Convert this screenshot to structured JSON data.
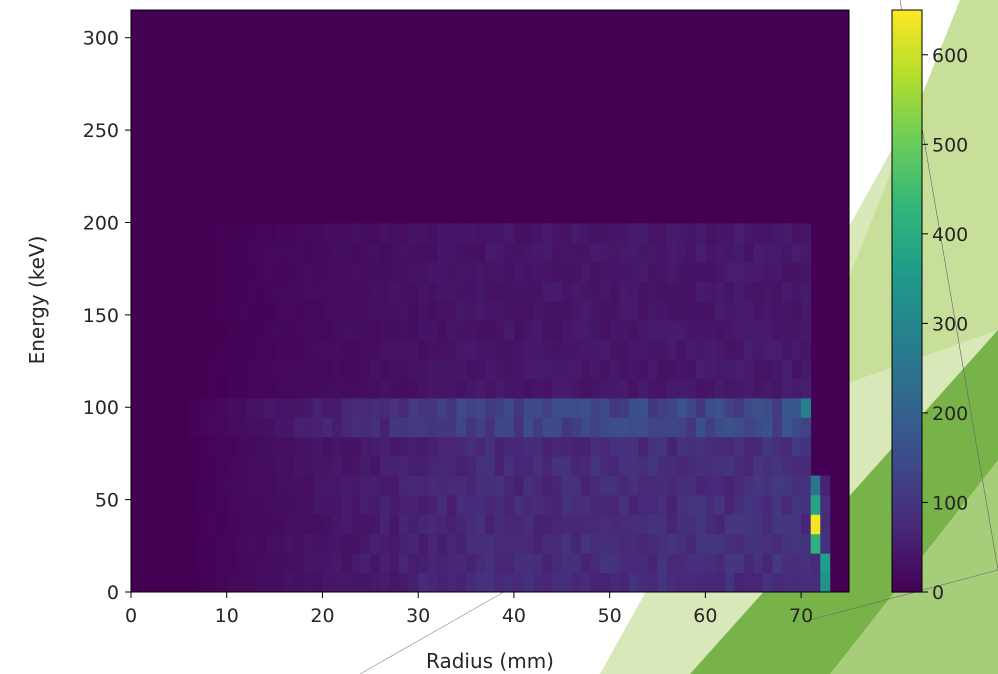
{
  "chart_data": {
    "type": "heatmap",
    "title": "",
    "xlabel": "Radius (mm)",
    "ylabel": "Energy (keV)",
    "xlim": [
      0,
      75
    ],
    "ylim": [
      0,
      315
    ],
    "x_ticks": [
      "0",
      "10",
      "20",
      "30",
      "40",
      "50",
      "60",
      "70"
    ],
    "y_ticks": [
      "0",
      "50",
      "100",
      "150",
      "200",
      "250",
      "300"
    ],
    "colorbar": {
      "colormap": "viridis",
      "range": [
        0,
        650
      ],
      "ticks": [
        "0",
        "100",
        "200",
        "300",
        "400",
        "500",
        "600"
      ]
    },
    "bins": {
      "x_edges": [
        0,
        75
      ],
      "x_count": 75,
      "y_edges": [
        0,
        315
      ],
      "y_count": 30
    },
    "energy_bands": [
      {
        "e_from": 0,
        "e_to": 80,
        "level": 80
      },
      {
        "e_from": 80,
        "e_to": 110,
        "level": 130
      },
      {
        "e_from": 110,
        "e_to": 200,
        "level": 40
      }
    ],
    "hotspots": [
      {
        "r": 71.5,
        "e": 36,
        "value": 640
      },
      {
        "r": 71.5,
        "e": 26,
        "value": 420
      },
      {
        "r": 71.5,
        "e": 46,
        "value": 380
      },
      {
        "r": 72.5,
        "e": 16,
        "value": 360
      },
      {
        "r": 72.5,
        "e": 5,
        "value": 330
      },
      {
        "r": 71.5,
        "e": 57,
        "value": 250
      },
      {
        "r": 70.5,
        "e": 100,
        "value": 280
      }
    ],
    "colors": {
      "background": "#440154",
      "frame": "#000000",
      "text": "#262626"
    }
  },
  "decor": {
    "shapes": [
      {
        "color": "#d9e8b8"
      },
      {
        "color": "#c8df9a"
      },
      {
        "color": "#78b34a"
      },
      {
        "color": "#a6cd79"
      }
    ]
  }
}
